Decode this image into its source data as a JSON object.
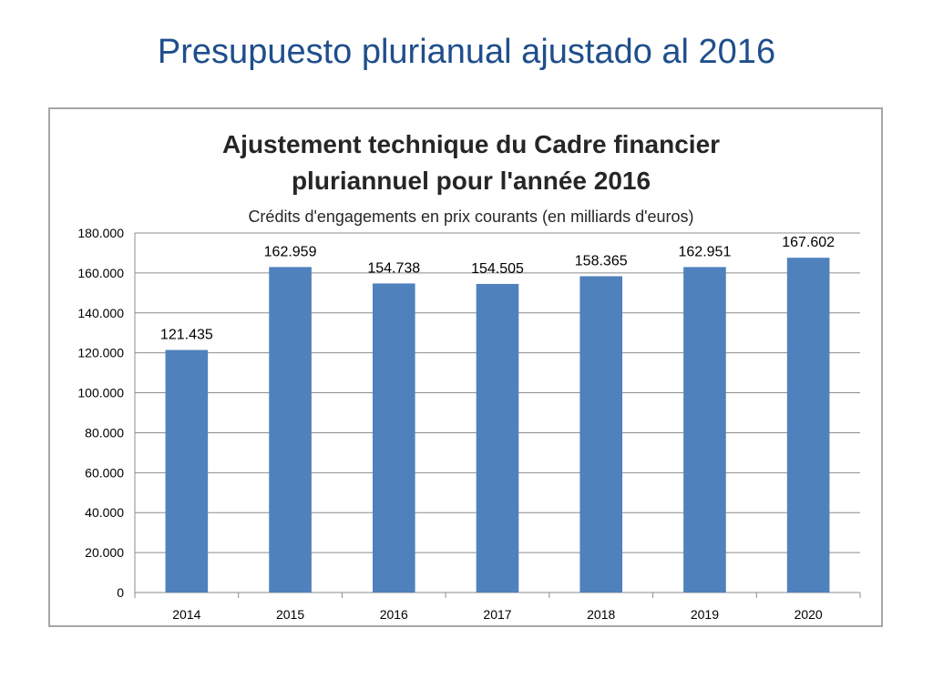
{
  "slide": {
    "title": "Presupuesto plurianual ajustado al 2016"
  },
  "chart_data": {
    "type": "bar",
    "title": "Ajustement technique du Cadre financier pluriannuel pour l'année 2016",
    "title_lines": [
      "Ajustement technique du Cadre financier",
      "pluriannuel pour l'année 2016"
    ],
    "subtitle": "Crédits d'engagements en prix courants (en milliards d'euros)",
    "categories": [
      "2014",
      "2015",
      "2016",
      "2017",
      "2018",
      "2019",
      "2020"
    ],
    "values": [
      121.435,
      162.959,
      154.738,
      154.505,
      158.365,
      162.951,
      167.602
    ],
    "value_labels": [
      "121.435",
      "162.959",
      "154.738",
      "154.505",
      "158.365",
      "162.951",
      "167.602"
    ],
    "y_ticks": [
      "0",
      "20.000",
      "40.000",
      "60.000",
      "80.000",
      "100.000",
      "120.000",
      "140.000",
      "160.000",
      "180.000"
    ],
    "ylim": [
      0,
      180
    ],
    "grid": true,
    "legend": "none",
    "bar_color": "#4f81bd"
  }
}
